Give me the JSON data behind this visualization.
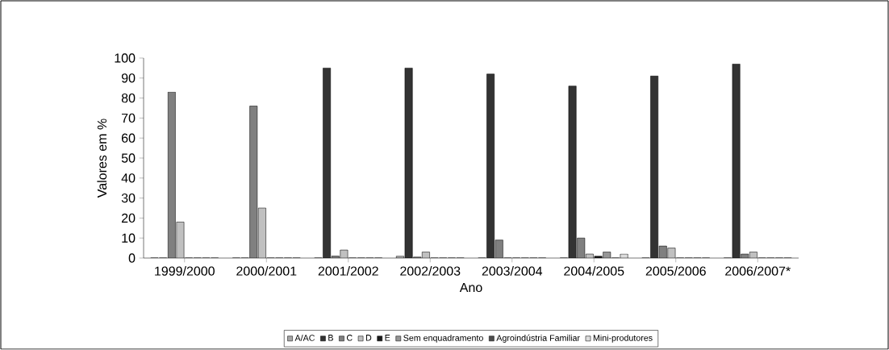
{
  "chart_data": {
    "type": "bar",
    "xlabel": "Ano",
    "ylabel": "Valores em %",
    "categories": [
      "1999/2000",
      "2000/2001",
      "2001/2002",
      "2002/2003",
      "2003/2004",
      "2004/2005",
      "2005/2006",
      "2006/2007*"
    ],
    "ylim": [
      0,
      100
    ],
    "yticks": [
      0,
      10,
      20,
      30,
      40,
      50,
      60,
      70,
      80,
      90,
      100
    ],
    "grid": false,
    "legend": "bottom",
    "series": [
      {
        "name": "A/AC",
        "color": "#a6a6a6",
        "values": [
          0,
          0,
          0,
          1,
          0,
          0,
          0,
          0
        ]
      },
      {
        "name": "B",
        "color": "#333333",
        "values": [
          0,
          0,
          95,
          95,
          92,
          86,
          91,
          97
        ]
      },
      {
        "name": "C",
        "color": "#808080",
        "values": [
          83,
          76,
          1,
          0.5,
          9,
          10,
          6,
          2
        ]
      },
      {
        "name": "D",
        "color": "#c0c0c0",
        "values": [
          18,
          25,
          4,
          3,
          0,
          2,
          5,
          3
        ]
      },
      {
        "name": "E",
        "color": "#1a1a1a",
        "values": [
          0,
          0,
          0,
          0,
          0,
          1,
          0,
          0
        ]
      },
      {
        "name": "Sem enquadramento",
        "color": "#969696",
        "values": [
          0,
          0,
          0,
          0,
          0,
          3,
          0,
          0
        ]
      },
      {
        "name": "Agroindústria Familiar",
        "color": "#4d4d4d",
        "values": [
          0,
          0,
          0,
          0,
          0,
          0,
          0,
          0
        ]
      },
      {
        "name": "Mini-produtores",
        "color": "#dddddd",
        "values": [
          0,
          0,
          0,
          0,
          0,
          2,
          0,
          0
        ]
      }
    ]
  }
}
